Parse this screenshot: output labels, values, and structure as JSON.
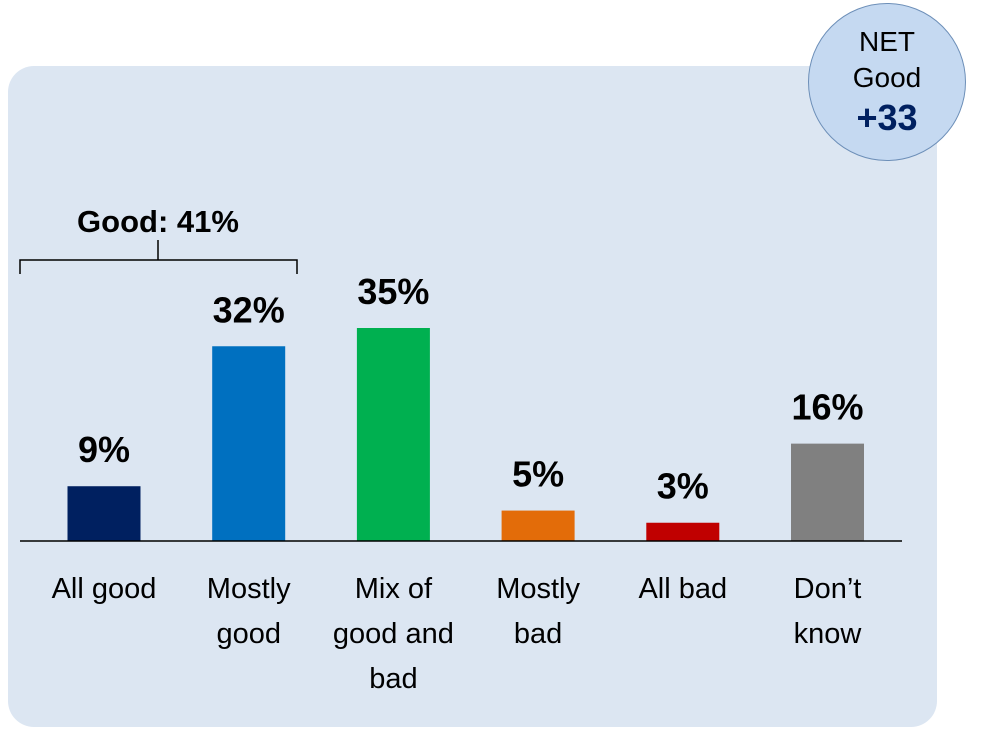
{
  "chart_data": {
    "type": "bar",
    "categories": [
      [
        "All good"
      ],
      [
        "Mostly",
        "good"
      ],
      [
        "Mix of",
        "good and",
        "bad"
      ],
      [
        "Mostly",
        "bad"
      ],
      [
        "All bad"
      ],
      [
        "Don’t",
        "know"
      ]
    ],
    "values": [
      9,
      32,
      35,
      5,
      3,
      16
    ],
    "value_labels": [
      "9%",
      "32%",
      "35%",
      "5%",
      "3%",
      "16%"
    ],
    "colors": [
      "#002060",
      "#0070c0",
      "#00b050",
      "#e36c09",
      "#c00000",
      "#808080"
    ],
    "ylim": [
      0,
      35
    ],
    "grid": false,
    "bracket": {
      "label": "Good: 41%",
      "spans_categories": [
        0,
        1
      ]
    }
  },
  "net_badge": {
    "line1": "NET",
    "line2": "Good",
    "value": "+33"
  }
}
